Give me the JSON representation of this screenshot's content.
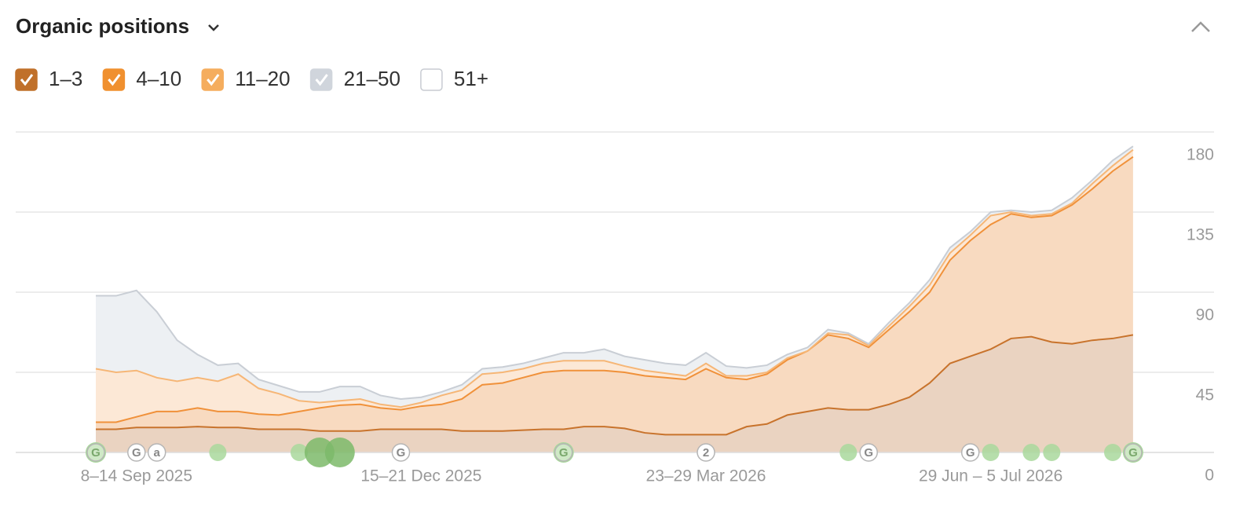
{
  "chart_data": {
    "type": "stacked_area",
    "title": "Organic positions",
    "categories": [
      null,
      null,
      "8–14 Sep 2025",
      null,
      null,
      null,
      null,
      null,
      null,
      null,
      null,
      null,
      null,
      null,
      null,
      null,
      "15–21 Dec 2025",
      null,
      null,
      null,
      null,
      null,
      null,
      null,
      null,
      null,
      null,
      null,
      null,
      null,
      "23–29 Mar 2026",
      null,
      null,
      null,
      null,
      null,
      null,
      null,
      null,
      null,
      null,
      null,
      null,
      null,
      "29 Jun – 5 Jul 2026",
      null,
      null,
      null,
      null,
      null,
      null,
      null
    ],
    "ylim": [
      0,
      180
    ],
    "yticks": [
      0,
      45,
      90,
      135,
      180
    ],
    "grid": true,
    "y_axis_side": "right",
    "series": [
      {
        "name": "1–3",
        "checked": true,
        "color": "#c8732c",
        "fill": "#ead3c1",
        "box": "#c0702a",
        "values": [
          13,
          13,
          14,
          14,
          14,
          14.5,
          14,
          14,
          13,
          13,
          13,
          12,
          12,
          12,
          13,
          13,
          13,
          13,
          12,
          12,
          12,
          12.5,
          13,
          13,
          14.5,
          14.5,
          13.5,
          11,
          10,
          10,
          10,
          10,
          14.5,
          16,
          21,
          23,
          25,
          24,
          24,
          27,
          31,
          39,
          50,
          54,
          58,
          64,
          65,
          62,
          61,
          63,
          64,
          66
        ]
      },
      {
        "name": "4–10",
        "checked": true,
        "color": "#f0913a",
        "fill": "#f8dac0",
        "box": "#f0902f",
        "values": [
          4,
          4,
          6,
          9,
          9,
          10.5,
          9,
          9,
          8.5,
          8,
          10,
          13,
          14.5,
          15,
          12,
          11,
          13,
          14,
          18,
          26,
          27,
          29.5,
          32,
          33,
          31.5,
          31.5,
          31.5,
          32,
          32,
          31,
          37,
          32,
          26.5,
          28,
          31,
          34,
          41,
          40,
          35,
          42,
          48,
          51,
          58,
          65,
          70,
          70,
          67,
          71,
          78,
          85,
          94,
          100
        ]
      },
      {
        "name": "11–20",
        "checked": true,
        "color": "#f6b676",
        "fill": "#fce8d6",
        "box": "#f5ad5e",
        "values": [
          30,
          28,
          26,
          19,
          17,
          17,
          17,
          21,
          14.5,
          12,
          6,
          3,
          2.5,
          3,
          2,
          1.5,
          2,
          5,
          5,
          6,
          6,
          5,
          5,
          5.5,
          5.5,
          5.5,
          3.5,
          3,
          2.5,
          2,
          3,
          1,
          2,
          1,
          1,
          0,
          1,
          2,
          1,
          2,
          3,
          4,
          4,
          3,
          5,
          1,
          1,
          1,
          1,
          3,
          3,
          4
        ]
      },
      {
        "name": "21–50",
        "checked": true,
        "color": "#c9ced5",
        "fill": "#edf0f3",
        "box": "#d0d5dc",
        "values": [
          41,
          43,
          45,
          37,
          23,
          13,
          9,
          6,
          5,
          4.5,
          5,
          6,
          8,
          7,
          5,
          4.5,
          3,
          2,
          3,
          3,
          3,
          3,
          3,
          4.5,
          4.5,
          6.5,
          5.5,
          6,
          5.5,
          6,
          6,
          5.5,
          4.5,
          4,
          2,
          2,
          2,
          1,
          1,
          2,
          2,
          3,
          3,
          2,
          2,
          1,
          2,
          2,
          3,
          2,
          3,
          2
        ]
      },
      {
        "name": "51+",
        "checked": false,
        "box": "#ffffff"
      }
    ],
    "annotations": [
      {
        "at": 0,
        "label": "G",
        "green": true
      },
      {
        "at": 2,
        "label": "G"
      },
      {
        "at": 3,
        "label": "a"
      },
      {
        "at": 15,
        "label": "G"
      },
      {
        "at": 23,
        "label": "G",
        "green": true
      },
      {
        "at": 30,
        "label": "2"
      },
      {
        "at": 38,
        "label": "G"
      },
      {
        "at": 43,
        "label": "G"
      },
      {
        "at": 51,
        "label": "G",
        "green": true
      }
    ],
    "events": [
      {
        "at": 6,
        "size": "small"
      },
      {
        "at": 10,
        "size": "small"
      },
      {
        "at": 11,
        "size": "large"
      },
      {
        "at": 12,
        "size": "large"
      },
      {
        "at": 37,
        "size": "small"
      },
      {
        "at": 44,
        "size": "small"
      },
      {
        "at": 46,
        "size": "small"
      },
      {
        "at": 47,
        "size": "small"
      },
      {
        "at": 50,
        "size": "small"
      }
    ]
  }
}
